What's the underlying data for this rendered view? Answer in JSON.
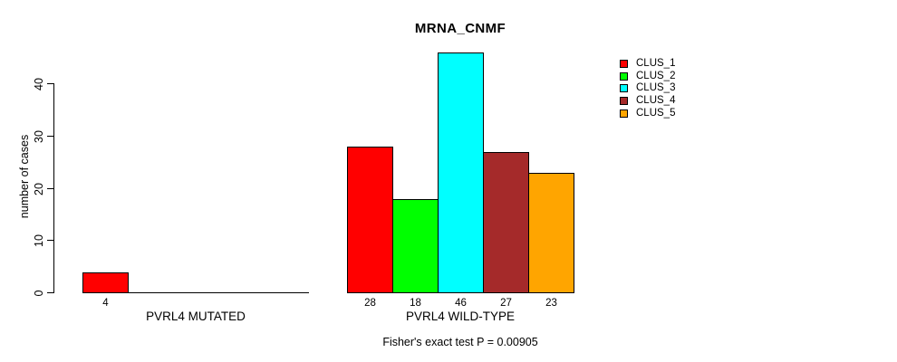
{
  "chart_data": {
    "type": "bar",
    "title": "MRNA_CNMF",
    "ylabel": "number of cases",
    "xlabel": "",
    "ylim": [
      0,
      46
    ],
    "yticks": [
      0,
      10,
      20,
      30,
      40
    ],
    "grid": false,
    "legend_position": "top-right",
    "categories": [
      "PVRL4 MUTATED",
      "PVRL4 WILD-TYPE"
    ],
    "series": [
      {
        "name": "CLUS_1",
        "color": "#FF0000",
        "values": [
          4,
          28
        ]
      },
      {
        "name": "CLUS_2",
        "color": "#00FF00",
        "values": [
          0,
          18
        ]
      },
      {
        "name": "CLUS_3",
        "color": "#00FFFF",
        "values": [
          0,
          46
        ]
      },
      {
        "name": "CLUS_4",
        "color": "#A52A2A",
        "values": [
          0,
          27
        ]
      },
      {
        "name": "CLUS_5",
        "color": "#FFA500",
        "values": [
          0,
          23
        ]
      }
    ],
    "bar_value_labels": [
      [
        "4"
      ],
      [
        "28",
        "18",
        "46",
        "27",
        "23"
      ]
    ],
    "footnote": "Fisher's exact test P = 0.00905",
    "colors": {
      "background": "#FFFFFF",
      "axis": "#000000",
      "text": "#000000"
    }
  }
}
